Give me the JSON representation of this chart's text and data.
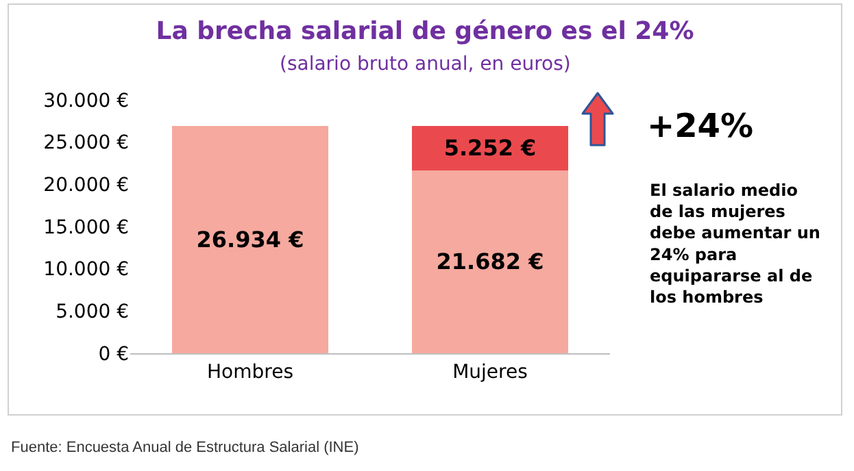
{
  "chart_data": {
    "type": "bar",
    "title": "La brecha salarial de género es el 24%",
    "subtitle": "(salario bruto anual, en euros)",
    "categories": [
      "Hombres",
      "Mujeres"
    ],
    "stacked": true,
    "series": [
      {
        "color": "#f5a99f",
        "values": [
          26934,
          21682
        ],
        "value_labels": [
          "26.934 €",
          "21.682 €"
        ]
      },
      {
        "color": "#ea4a4e",
        "values": [
          null,
          5252
        ],
        "value_labels": [
          null,
          "5.252 €"
        ]
      }
    ],
    "ylim": [
      0,
      30000
    ],
    "yticks": [
      {
        "value": 0,
        "label": "0 €"
      },
      {
        "value": 5000,
        "label": "5.000 €"
      },
      {
        "value": 10000,
        "label": "10.000 €"
      },
      {
        "value": 15000,
        "label": "15.000 €"
      },
      {
        "value": 20000,
        "label": "20.000 €"
      },
      {
        "value": 25000,
        "label": "25.000 €"
      },
      {
        "value": 30000,
        "label": "30.000 €"
      }
    ],
    "grid": false,
    "annotations": [
      "+24%",
      "El salario medio de las mujeres debe aumentar un 24% para equipararse al de los hombres",
      "Fuente: Encuesta Anual de Estructura Salarial (INE)"
    ]
  }
}
